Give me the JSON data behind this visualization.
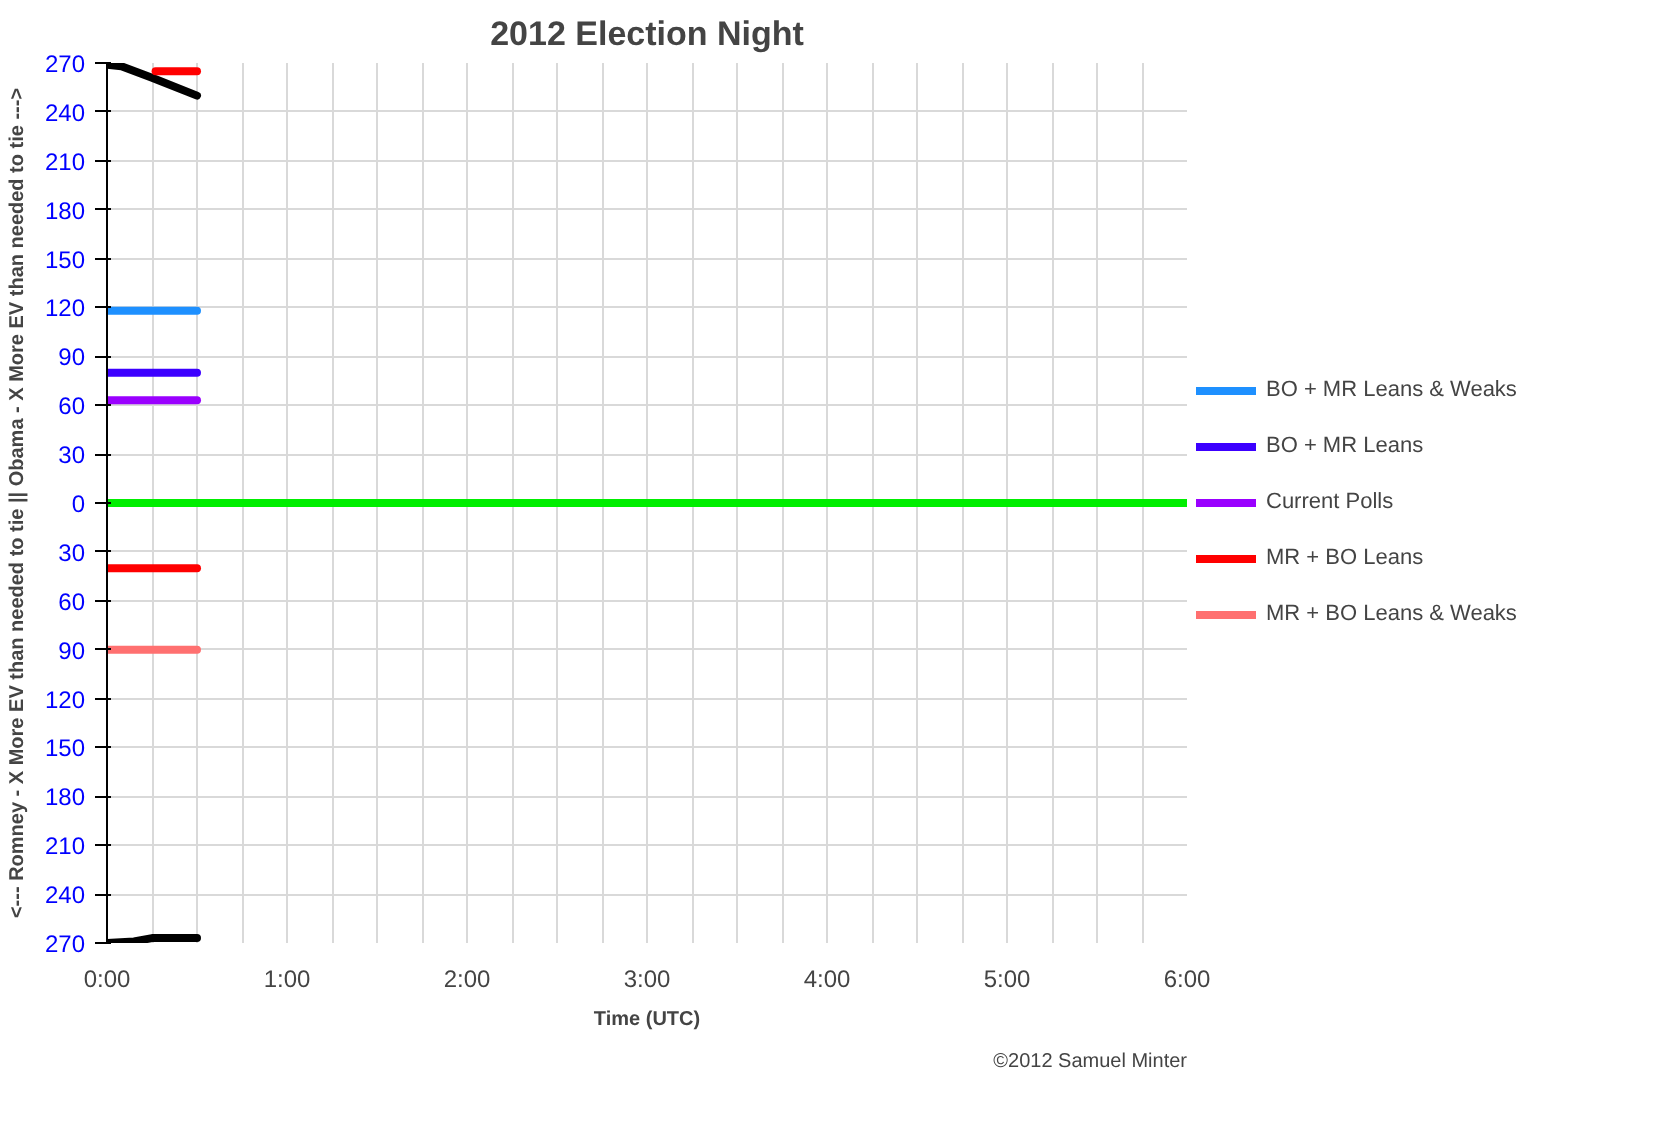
{
  "chart_data": {
    "type": "line",
    "title": "2012 Election Night",
    "xlabel": "Time (UTC)",
    "ylabel": "<--- Romney - X More EV than needed to tie || Obama - X More EV than needed to tie --->",
    "annotations": [
      "©2012 Samuel Minter"
    ],
    "xlim": [
      0,
      6
    ],
    "ylim": [
      -270,
      270
    ],
    "xticks": [
      {
        "value": 0,
        "label": "0:00"
      },
      {
        "value": 0.25,
        "label": null
      },
      {
        "value": 0.5,
        "label": null
      },
      {
        "value": 0.75,
        "label": null
      },
      {
        "value": 1,
        "label": "1:00"
      },
      {
        "value": 1.25,
        "label": null
      },
      {
        "value": 1.5,
        "label": null
      },
      {
        "value": 1.75,
        "label": null
      },
      {
        "value": 2,
        "label": "2:00"
      },
      {
        "value": 2.25,
        "label": null
      },
      {
        "value": 2.5,
        "label": null
      },
      {
        "value": 2.75,
        "label": null
      },
      {
        "value": 3,
        "label": "3:00"
      },
      {
        "value": 3.25,
        "label": null
      },
      {
        "value": 3.5,
        "label": null
      },
      {
        "value": 3.75,
        "label": null
      },
      {
        "value": 4,
        "label": "4:00"
      },
      {
        "value": 4.25,
        "label": null
      },
      {
        "value": 4.5,
        "label": null
      },
      {
        "value": 4.75,
        "label": null
      },
      {
        "value": 5,
        "label": "5:00"
      },
      {
        "value": 5.25,
        "label": null
      },
      {
        "value": 5.5,
        "label": null
      },
      {
        "value": 5.75,
        "label": null
      },
      {
        "value": 6,
        "label": "6:00"
      }
    ],
    "yticks": [
      {
        "value": 270,
        "label": "270"
      },
      {
        "value": 240,
        "label": "240"
      },
      {
        "value": 210,
        "label": "210"
      },
      {
        "value": 180,
        "label": "180"
      },
      {
        "value": 150,
        "label": "150"
      },
      {
        "value": 120,
        "label": "120"
      },
      {
        "value": 90,
        "label": "90"
      },
      {
        "value": 60,
        "label": "60"
      },
      {
        "value": 30,
        "label": "30"
      },
      {
        "value": 0,
        "label": "0"
      },
      {
        "value": -30,
        "label": "30"
      },
      {
        "value": -60,
        "label": "60"
      },
      {
        "value": -90,
        "label": "90"
      },
      {
        "value": -120,
        "label": "120"
      },
      {
        "value": -150,
        "label": "150"
      },
      {
        "value": -180,
        "label": "180"
      },
      {
        "value": -210,
        "label": "210"
      },
      {
        "value": -240,
        "label": "240"
      },
      {
        "value": -270,
        "label": "270"
      }
    ],
    "grid": true,
    "legend": "right",
    "marker": "none",
    "line_style": "solid",
    "series": [
      {
        "name": "BO + MR Leans & Weaks",
        "color": "#1e90ff",
        "x": [
          0,
          0.5
        ],
        "values": [
          118,
          118
        ]
      },
      {
        "name": "BO + MR Leans",
        "color": "#3c00ff",
        "x": [
          0,
          0.5
        ],
        "values": [
          80,
          80
        ]
      },
      {
        "name": "Current Polls",
        "color": "#9a00ff",
        "x": [
          0,
          0.5
        ],
        "values": [
          63,
          63
        ]
      },
      {
        "name": "MR + BO Leans",
        "color": "#ff0000",
        "x": [
          0,
          0.5
        ],
        "values": [
          -40,
          -40
        ]
      },
      {
        "name": "MR + BO Leans & Weaks",
        "color": "#ff7070",
        "x": [
          0,
          0.5
        ],
        "values": [
          -90,
          -90
        ]
      },
      {
        "color": "#00ee00",
        "x": [
          0,
          6
        ],
        "values": [
          0,
          0
        ]
      },
      {
        "color": "#000000",
        "x": [
          0,
          0.08,
          0.25,
          0.5
        ],
        "values": [
          269,
          268,
          261,
          250
        ]
      },
      {
        "color": "#000000",
        "x": [
          0,
          0.15,
          0.25,
          0.5
        ],
        "values": [
          -270,
          -269,
          -267,
          -267
        ]
      },
      {
        "color": "#ff0000",
        "x": [
          0.27,
          0.5
        ],
        "values": [
          265,
          265
        ]
      }
    ]
  }
}
